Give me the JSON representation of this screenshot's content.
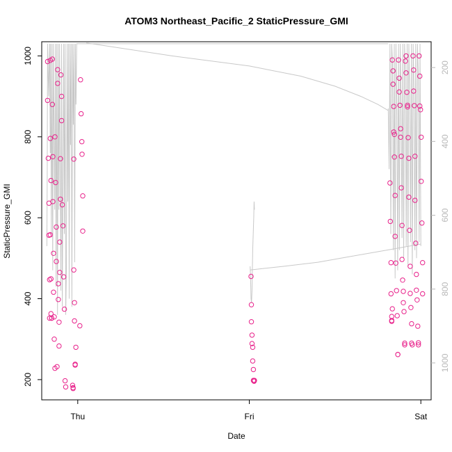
{
  "chart_data": {
    "type": "scatter",
    "title": "ATOM3 Northeast_Pacific_2 StaticPressure_GMI",
    "xlabel": "Date",
    "ylabel": "StaticPressure_GMI",
    "x_ticks": [
      {
        "label": "Thu",
        "value": 0
      },
      {
        "label": "Fri",
        "value": 1
      },
      {
        "label": "Sat",
        "value": 2
      }
    ],
    "xlim": [
      -0.21,
      2.06
    ],
    "ylim": [
      150,
      1035
    ],
    "y_ticks": [
      200,
      400,
      600,
      800,
      1000
    ],
    "y2_ticks": [
      200,
      400,
      600,
      800,
      1000
    ],
    "y2lim": [
      1100,
      130
    ],
    "grid": false,
    "colors": {
      "points": "#e8208a",
      "line": "#c8c8c8",
      "axis": "#000000",
      "right_axis": "#b8b8b8"
    },
    "series": [
      {
        "kind": "points",
        "x": [
          -0.176,
          -0.176,
          -0.172,
          -0.168,
          -0.168,
          -0.164,
          -0.164,
          -0.16,
          -0.16,
          -0.156,
          -0.16,
          -0.156,
          -0.156,
          -0.152,
          -0.152,
          -0.148,
          -0.148,
          -0.145,
          -0.145,
          -0.141,
          -0.141,
          -0.137,
          -0.137,
          -0.133,
          -0.133,
          -0.129,
          -0.125,
          -0.125,
          -0.121,
          -0.117,
          -0.117,
          -0.113,
          -0.113,
          -0.109,
          -0.109,
          -0.105,
          -0.105,
          -0.101,
          -0.101,
          -0.098,
          -0.094,
          -0.094,
          -0.09,
          -0.086,
          -0.082,
          -0.078,
          -0.074,
          -0.07,
          -0.03,
          -0.027,
          -0.027,
          -0.023,
          -0.023,
          -0.019,
          -0.019,
          -0.015,
          -0.015,
          -0.011,
          0.012,
          0.016,
          0.02,
          0.024,
          0.025,
          0.029,
          0.029
        ],
        "y": [
          986,
          890,
          747,
          636,
          557,
          447,
          352,
          989,
          796,
          692,
          558,
          449,
          363,
          352,
          352,
          992,
          880,
          751,
          640,
          512,
          416,
          355,
          300,
          228,
          800,
          687,
          577,
          492,
          232,
          966,
          932,
          437,
          398,
          342,
          283,
          540,
          465,
          746,
          646,
          953,
          900,
          840,
          632,
          580,
          454,
          374,
          197,
          182,
          186,
          178,
          180,
          745,
          471,
          390,
          345,
          238,
          236,
          280,
          333,
          941,
          857,
          788,
          757,
          654,
          567
        ]
      },
      {
        "kind": "points",
        "x": [
          1.01,
          1.012,
          1.012,
          1.016,
          1.016,
          1.02,
          1.02,
          1.024,
          1.024,
          1.028,
          1.028,
          1.03
        ],
        "y": [
          455,
          385,
          343,
          310,
          289,
          280,
          246,
          225,
          198,
          197,
          196,
          198
        ]
      },
      {
        "kind": "points",
        "x": [
          1.82,
          1.822,
          1.826,
          1.826,
          1.83,
          1.83,
          1.83,
          1.834,
          1.834,
          1.838,
          1.838,
          1.842,
          1.842,
          1.846,
          1.846,
          1.85,
          1.85,
          1.854,
          1.858,
          1.862,
          1.866,
          1.866,
          1.87,
          1.874,
          1.874,
          1.878,
          1.882,
          1.882,
          1.886,
          1.886,
          1.89,
          1.89,
          1.894,
          1.898,
          1.898,
          1.902,
          1.906,
          1.906,
          1.91,
          1.914,
          1.914,
          1.918,
          1.922,
          1.922,
          1.926,
          1.93,
          1.93,
          1.934,
          1.938,
          1.938,
          1.942,
          1.946,
          1.946,
          1.95,
          1.954,
          1.958,
          1.958,
          1.962,
          1.966,
          1.966,
          1.97,
          1.974,
          1.974,
          1.978,
          1.982,
          1.986,
          1.986,
          1.99,
          1.994,
          1.994,
          1.998,
          2.002,
          2.002,
          2.006,
          2.01,
          2.01
        ],
        "y": [
          686,
          591,
          489,
          412,
          356,
          346,
          344,
          375,
          990,
          963,
          930,
          875,
          812,
          806,
          750,
          655,
          554,
          488,
          420,
          358,
          262,
          262,
          990,
          945,
          911,
          878,
          820,
          799,
          752,
          674,
          581,
          497,
          446,
          418,
          390,
          368,
          290,
          286,
          987,
          1000,
          958,
          910,
          878,
          874,
          798,
          747,
          651,
          569,
          480,
          413,
          378,
          338,
          290,
          286,
          1000,
          965,
          913,
          877,
          752,
          643,
          537,
          460,
          421,
          397,
          332,
          291,
          286,
          1000,
          950,
          876,
          867,
          799,
          690,
          587,
          489,
          412
        ]
      },
      {
        "kind": "line",
        "x": [
          -0.18,
          -0.178,
          -0.176,
          -0.17,
          -0.164,
          -0.16,
          -0.158,
          -0.154,
          -0.15,
          -0.146,
          -0.142,
          -0.138,
          -0.134,
          -0.13,
          -0.126,
          -0.122,
          -0.118,
          -0.114,
          -0.11,
          -0.106,
          -0.102,
          -0.098,
          -0.094,
          -0.09,
          -0.086,
          -0.082,
          -0.078,
          -0.074,
          -0.07,
          -0.066,
          -0.062,
          -0.058,
          -0.054,
          -0.05,
          -0.046,
          -0.042,
          -0.038,
          -0.034,
          -0.03,
          -0.026,
          -0.022,
          -0.018,
          -0.014,
          -0.01,
          -0.006,
          0.01,
          0.02,
          0.05,
          0.12,
          0.25,
          0.4,
          0.55,
          0.7,
          0.85,
          1.0,
          1.15,
          1.3,
          1.45,
          1.6,
          1.75,
          1.81
        ],
        "y": [
          530,
          700,
          1030,
          900,
          1030,
          760,
          1030,
          560,
          1030,
          470,
          1030,
          800,
          620,
          1030,
          430,
          1030,
          360,
          1030,
          620,
          1030,
          720,
          420,
          1030,
          380,
          700,
          1030,
          560,
          1030,
          360,
          470,
          1030,
          640,
          1030,
          400,
          1030,
          780,
          1030,
          380,
          1030,
          830,
          1030,
          490,
          1030,
          880,
          1030,
          1030,
          1030,
          1030,
          1030,
          1030,
          1030,
          1030,
          1030,
          1030,
          1030,
          1030,
          1030,
          1030,
          1030,
          1030,
          1030
        ]
      },
      {
        "kind": "line",
        "x": [
          0.05,
          0.55,
          1.0,
          1.3,
          1.5,
          1.65,
          1.75,
          1.81
        ],
        "y": [
          1032,
          1000,
          975,
          950,
          925,
          900,
          880,
          865
        ]
      },
      {
        "kind": "line",
        "x": [
          1.005,
          1.007,
          1.01,
          1.013,
          1.016,
          1.02,
          1.026,
          1.028,
          1.03
        ],
        "y": [
          480,
          460,
          400,
          390,
          420,
          520,
          600,
          640,
          620
        ]
      },
      {
        "kind": "line",
        "x": [
          1.005,
          1.2,
          1.4,
          1.6,
          1.8,
          2.0
        ],
        "y": [
          471,
          480,
          490,
          505,
          520,
          535
        ]
      },
      {
        "kind": "line",
        "x": [
          1.81,
          1.815,
          1.82,
          1.825,
          1.83,
          1.835,
          1.84,
          1.845,
          1.85,
          1.855,
          1.86,
          1.865,
          1.87,
          1.875,
          1.88,
          1.885,
          1.89,
          1.895,
          1.9,
          1.905,
          1.91,
          1.915,
          1.92,
          1.925,
          1.93,
          1.935,
          1.94,
          1.945,
          1.95,
          1.955,
          1.96,
          1.965,
          1.97,
          1.975,
          1.98,
          1.985,
          1.99,
          1.995,
          2.0
        ],
        "y": [
          870,
          720,
          1030,
          560,
          1030,
          980,
          520,
          1030,
          450,
          1030,
          880,
          470,
          1030,
          520,
          1030,
          890,
          550,
          1030,
          500,
          1030,
          960,
          530,
          1030,
          480,
          1030,
          900,
          540,
          1030,
          460,
          1030,
          920,
          520,
          1030,
          500,
          1030,
          960,
          540,
          1030,
          530
        ]
      }
    ]
  }
}
